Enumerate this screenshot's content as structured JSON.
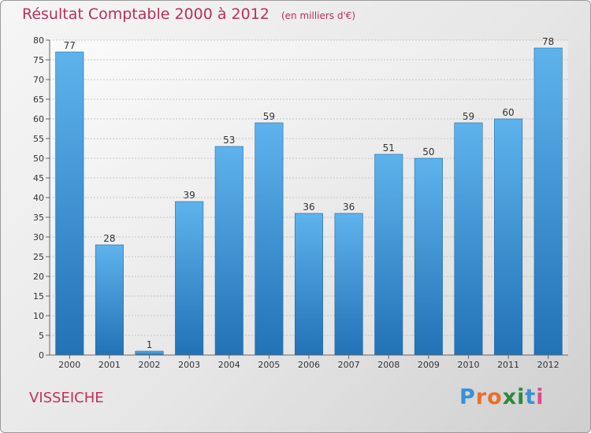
{
  "chart_data": {
    "type": "bar",
    "title": "Résultat Comptable 2000 à 2012",
    "subtitle": "(en milliers d'€)",
    "categories": [
      "2000",
      "2001",
      "2002",
      "2003",
      "2004",
      "2005",
      "2006",
      "2007",
      "2008",
      "2009",
      "2010",
      "2011",
      "2012"
    ],
    "values": [
      77,
      28,
      1,
      39,
      53,
      59,
      36,
      36,
      51,
      50,
      59,
      60,
      78
    ],
    "ylim": [
      0,
      80
    ],
    "yticks": [
      0,
      5,
      10,
      15,
      20,
      25,
      30,
      35,
      40,
      45,
      50,
      55,
      60,
      65,
      70,
      75,
      80
    ],
    "xlabel": "",
    "ylabel": "",
    "grid": true,
    "bar_color": "#3d8fd4"
  },
  "commune": "VISSEICHE",
  "logo": {
    "text": "Proxiti",
    "letters": [
      "P",
      "r",
      "o",
      "x",
      "i",
      "t",
      "i"
    ],
    "colors": [
      "#3b8fd6",
      "#e8702a",
      "#e8702a",
      "#2a8a3a",
      "#2a8a3a",
      "#3b8fd6",
      "#e04a8a"
    ]
  }
}
